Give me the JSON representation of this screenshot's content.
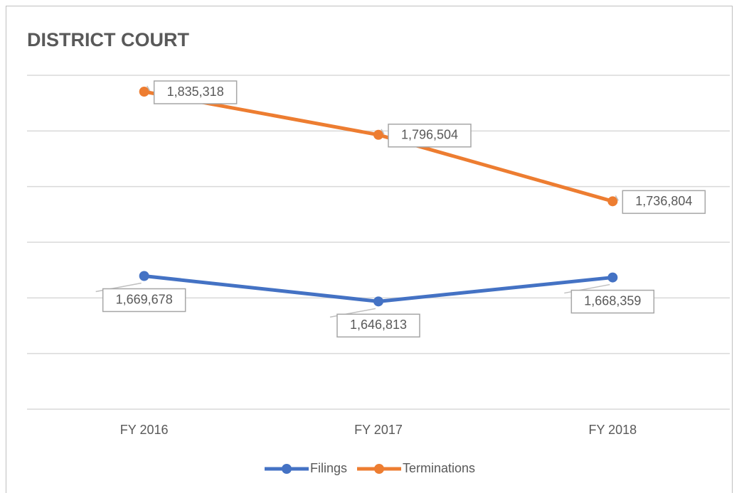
{
  "chart_data": {
    "type": "line",
    "title": "DISTRICT COURT",
    "categories": [
      "FY 2016",
      "FY 2017",
      "FY 2018"
    ],
    "series": [
      {
        "name": "Filings",
        "color": "#4472c4",
        "values": [
          1669678,
          1646813,
          1668359
        ],
        "value_labels": [
          "1,669,678",
          "1,646,813",
          "1,668,359"
        ]
      },
      {
        "name": "Terminations",
        "color": "#ed7d31",
        "values": [
          1835318,
          1796504,
          1736804
        ],
        "value_labels": [
          "1,835,318",
          "1,796,504",
          "1,736,804"
        ]
      }
    ],
    "ylim": [
      1550000,
      1850000
    ],
    "yticks": [
      1550000,
      1600000,
      1650000,
      1700000,
      1750000,
      1800000,
      1850000
    ],
    "grid": true,
    "legend": "bottom"
  }
}
